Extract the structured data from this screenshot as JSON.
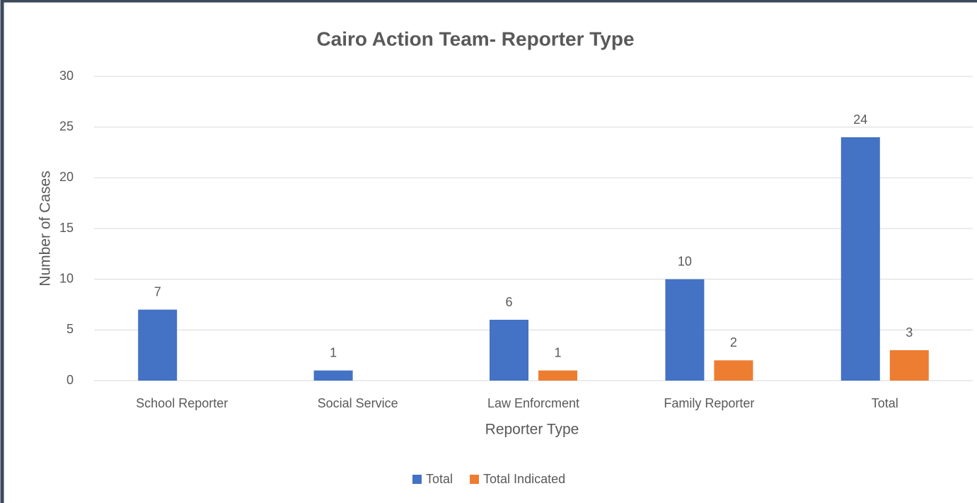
{
  "chart_data": {
    "type": "bar",
    "title": "Cairo Action Team- Reporter Type",
    "xlabel": "Reporter Type",
    "ylabel": "Number of Cases",
    "categories": [
      "School Reporter",
      "Social Service",
      "Law Enforcment",
      "Family Reporter",
      "Total"
    ],
    "series": [
      {
        "name": "Total",
        "color": "#4472c4",
        "values": [
          7,
          1,
          6,
          10,
          24
        ]
      },
      {
        "name": "Total Indicated",
        "color": "#ed7d31",
        "values": [
          null,
          null,
          1,
          2,
          3
        ]
      }
    ],
    "ylim": [
      0,
      30
    ],
    "yticks": [
      0,
      5,
      10,
      15,
      20,
      25,
      30
    ],
    "grid": true,
    "legend": "bottom"
  }
}
